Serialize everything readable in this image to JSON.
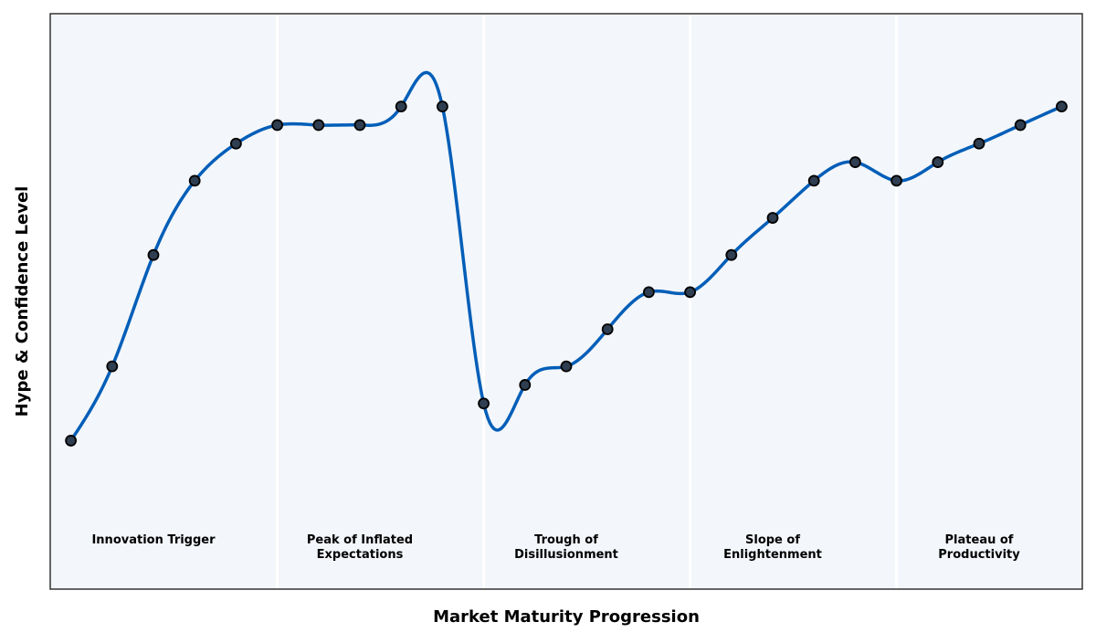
{
  "chart_data": {
    "type": "line",
    "title": "",
    "xlabel": "Market Maturity Progression",
    "ylabel": "Hype & Confidence Level",
    "x": [
      0,
      1,
      2,
      3,
      4,
      5,
      6,
      7,
      8,
      9,
      10,
      11,
      12,
      13,
      14,
      15,
      16,
      17,
      18,
      19,
      20,
      21,
      22,
      23,
      24
    ],
    "series": [
      {
        "values": [
          8,
          12,
          18,
          22,
          24,
          25,
          25,
          25,
          26,
          26,
          10,
          11,
          12,
          14,
          16,
          16,
          18,
          20,
          22,
          23,
          22,
          23,
          24,
          25,
          26
        ]
      }
    ],
    "xlim": [
      -0.5,
      24.5
    ],
    "ylim": [
      0,
      31
    ],
    "show_ticks": false,
    "grid": false,
    "smoothing": "cubic-spline",
    "phase_boundaries": [
      5,
      10,
      15,
      20
    ],
    "phases": [
      {
        "label": "Innovation Trigger",
        "center": 2
      },
      {
        "label": "Peak of Inflated\nExpectations",
        "center": 7
      },
      {
        "label": "Trough of\nDisillusionment",
        "center": 12
      },
      {
        "label": "Slope of\nEnlightenment",
        "center": 17
      },
      {
        "label": "Plateau of\nProductivity",
        "center": 22
      }
    ],
    "colors": {
      "line": "#005eb8",
      "marker_fill": "#2f3e50",
      "marker_edge": "#000000",
      "background": "#f3f6fa",
      "divider": "#ffffff"
    }
  }
}
